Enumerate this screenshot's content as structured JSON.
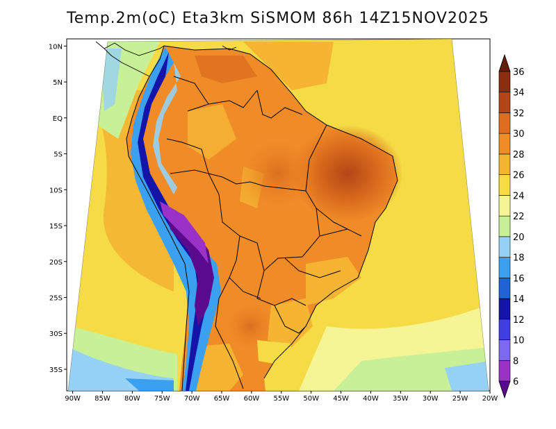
{
  "title": "Temp.2m(oC) Eta3km SiSMOM 86h 14Z15NOV2025",
  "chart_data": {
    "type": "heatmap",
    "title": "Temp.2m(oC) Eta3km SiSMOM 86h 14Z15NOV2025",
    "variable": "Temp.2m(oC)",
    "x_range": [
      -91,
      -20
    ],
    "y_range": [
      -38,
      11
    ],
    "x_ticks": [
      "90W",
      "85W",
      "80W",
      "75W",
      "70W",
      "65W",
      "60W",
      "55W",
      "50W",
      "45W",
      "40W",
      "35W",
      "30W",
      "25W",
      "20W"
    ],
    "y_ticks": [
      "10N",
      "5N",
      "EQ",
      "5S",
      "10S",
      "15S",
      "20S",
      "25S",
      "30S",
      "35S"
    ],
    "colorbar": {
      "levels": [
        "6",
        "8",
        "10",
        "12",
        "14",
        "16",
        "18",
        "20",
        "22",
        "24",
        "26",
        "28",
        "30",
        "32",
        "34",
        "36"
      ],
      "colors": [
        "#5a0a8c",
        "#9a32c8",
        "#7d6af0",
        "#3f3fe0",
        "#1414a8",
        "#1e64d2",
        "#3ca0f0",
        "#96d2f5",
        "#c8f096",
        "#f5f596",
        "#f5dc46",
        "#f5b432",
        "#f08c28",
        "#dc6e1e",
        "#b44616",
        "#8c2d0f",
        "#641e0a"
      ]
    }
  }
}
